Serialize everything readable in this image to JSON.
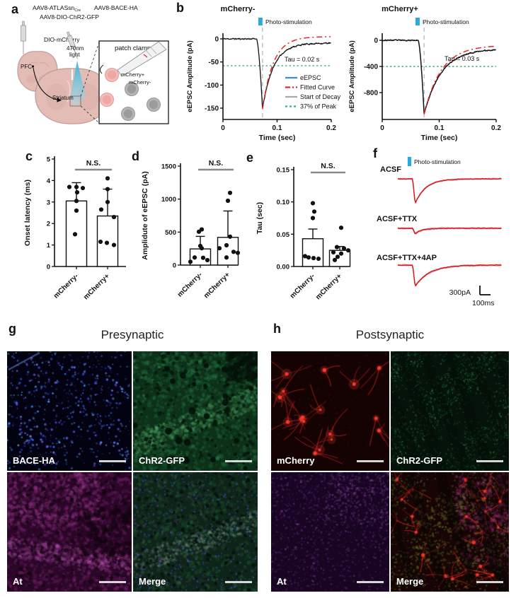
{
  "colors": {
    "stim_cyan": "#29abe2",
    "eepsc_blue": "#3d8ec9",
    "fit_red": "#e8252a",
    "decay_gray": "#aaaaaa",
    "peak_green": "#3eae7c",
    "trace_red": "#e0151b",
    "axis_black": "#111111",
    "ns_gray": "#8a8a8a"
  },
  "panels": {
    "a": {
      "label": "a",
      "virus1": "AAV8-ATLASsn",
      "virus1_sub": "Cre",
      "virus2": "AAV8-BACE-HA",
      "virus3": "AAV8-DIO-ChR2-GFP",
      "dio_mcherry": "DIO-mCherry",
      "light1": "470nm",
      "light2": "light",
      "pfc": "PFC",
      "striatum": "Striatum",
      "inset_title": "patch clamp",
      "cell_pos": "mCherry+",
      "cell_neg": "mCherry-"
    },
    "b": {
      "label": "b"
    },
    "c": {
      "label": "c"
    },
    "d": {
      "label": "d"
    },
    "e": {
      "label": "e"
    },
    "f": {
      "label": "f"
    },
    "g": {
      "label": "g",
      "title": "Presynaptic",
      "quads": [
        {
          "label": "BACE-HA"
        },
        {
          "label": "ChR2-GFP"
        },
        {
          "label": "At"
        },
        {
          "label": "Merge"
        }
      ]
    },
    "h": {
      "label": "h",
      "title": "Postsynaptic",
      "quads": [
        {
          "label": "mCherry"
        },
        {
          "label": "ChR2-GFP"
        },
        {
          "label": "At"
        },
        {
          "label": "Merge"
        }
      ]
    }
  },
  "chart_data": [
    {
      "id": "b_left",
      "type": "line",
      "title": "mCherry-",
      "stim_label": "Photo-stimulation",
      "xlabel": "Time (sec)",
      "ylabel": "eEPSC Amplitude (pA)",
      "xlim": [
        0,
        0.2
      ],
      "xticks": [
        0,
        0.1,
        0.2
      ],
      "xtick_labels": [
        "0",
        "0.1",
        "0.2"
      ],
      "yticks": [
        0,
        -50,
        -100,
        -150
      ],
      "onset": 0.062,
      "peak_time": 0.073,
      "peak": -152,
      "rest": -9,
      "tau": 0.02,
      "tau_label": "Tau = 0.02 s",
      "threshold": -58,
      "fit_end": 5,
      "legend": [
        {
          "label": "eEPSC",
          "color": "#3d8ec9",
          "dash": ""
        },
        {
          "label": "Fitted Curve",
          "color": "#e8252a",
          "dash": "7,3,2,3"
        },
        {
          "label": "Start of Decay",
          "color": "#aaaaaa",
          "dash": ""
        },
        {
          "label": "37% of Peak",
          "color": "#3eae7c",
          "dash": "3,3"
        }
      ]
    },
    {
      "id": "b_right",
      "type": "line",
      "title": "mCherry+",
      "stim_label": "Photo-stimulation",
      "xlabel": "Time (sec)",
      "ylabel": "eEPSC Amplitude (pA)",
      "xlim": [
        0,
        0.2
      ],
      "xticks": [
        0,
        0.1,
        0.2
      ],
      "xtick_labels": [
        "0",
        "0.1",
        "0.2"
      ],
      "yticks": [
        0,
        -400,
        -800
      ],
      "onset": 0.063,
      "peak_time": 0.0735,
      "peak": -1130,
      "rest": -130,
      "tau": 0.03,
      "tau_label": "Tau = 0.03 s",
      "threshold": -400,
      "fit_end": -75
    },
    {
      "id": "c",
      "type": "bar",
      "sig": "N.S.",
      "ylabel": "Onset latency (ms)",
      "ylim": [
        0,
        5
      ],
      "yticks": [
        0,
        1,
        2,
        3,
        4,
        5
      ],
      "ytick_labels": [
        "0",
        "1",
        "2",
        "3",
        "4",
        "5"
      ],
      "categories": [
        "mCherry-",
        "mCherry+"
      ],
      "means": [
        3.05,
        2.35
      ],
      "err_up": [
        0.85,
        1.25
      ],
      "points": [
        [
          3.7,
          3.7,
          3.65,
          3.45,
          3.05,
          2.6,
          1.5
        ],
        [
          4.1,
          3.6,
          3.0,
          2.65,
          2.3,
          1.15,
          1.1,
          1.0
        ]
      ]
    },
    {
      "id": "d",
      "type": "bar",
      "sig": "N.S.",
      "ylabel": "Amplidute of eEPSC (pA)",
      "ylim": [
        0,
        1500
      ],
      "yticks": [
        0,
        500,
        1000,
        1500
      ],
      "ytick_labels": [
        "0",
        "500",
        "1000",
        "1500"
      ],
      "categories": [
        "mCherry-",
        "mCherry+"
      ],
      "means": [
        245,
        420
      ],
      "err_up": [
        190,
        400
      ],
      "points": [
        [
          540,
          505,
          290,
          255,
          115,
          110,
          75,
          50
        ],
        [
          1095,
          975,
          430,
          300,
          255,
          200,
          185,
          115
        ]
      ]
    },
    {
      "id": "e",
      "type": "bar",
      "sig": "N.S.",
      "ylabel": "Tau (sec)",
      "ylim": [
        0,
        0.15
      ],
      "yticks": [
        0,
        0.05,
        0.1,
        0.15
      ],
      "ytick_labels": [
        "0.00",
        "0.05",
        "0.10",
        "0.15"
      ],
      "categories": [
        "mCherry-",
        "mCherry+"
      ],
      "means": [
        0.043,
        0.025
      ],
      "err_up": [
        0.015,
        0.006
      ],
      "points": [
        [
          0.098,
          0.085,
          0.075,
          0.016,
          0.014,
          0.013,
          0.012
        ],
        [
          0.06,
          0.03,
          0.028,
          0.025,
          0.022,
          0.02,
          0.015,
          0.01
        ]
      ]
    },
    {
      "id": "f",
      "type": "traces",
      "stim_label": "Photo-stimulation",
      "scale_bar_y": "300pA",
      "scale_bar_x": "100ms",
      "traces": [
        {
          "label": "ACSF",
          "relative_amplitude": 1.0
        },
        {
          "label": "ACSF+TTX",
          "relative_amplitude": 0.23
        },
        {
          "label": "ACSF+TTX+4AP",
          "relative_amplitude": 0.86
        }
      ]
    }
  ]
}
